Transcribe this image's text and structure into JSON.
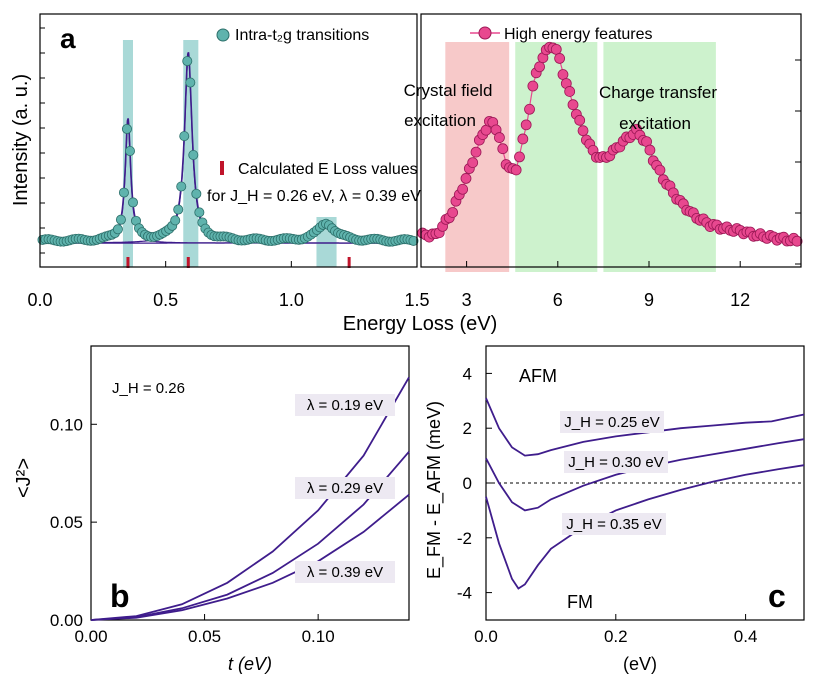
{
  "colors": {
    "purple": "#3f1d8c",
    "teal_fill": "#5fb3ad",
    "teal_band": "#a9d9d7",
    "pink_fill": "#e8488f",
    "pink_band": "#f7c9c9",
    "green_band": "#cdf2cd",
    "red_tick": "#c0142b",
    "label_bg": "#ede9f2"
  },
  "panel_a": {
    "panel_label": "a",
    "ylabel": "Intensity (a. u.)",
    "xlabel": "Energy Loss (eV)",
    "legend_left": "Intra-t₂g transitions",
    "legend_right": "High energy features",
    "calc_note_line1": "Calculated E Loss values",
    "calc_note_line2": "for J_H = 0.26 eV, λ = 0.39 eV",
    "crystal_field_line1": "Crystal field",
    "crystal_field_line2": "excitation",
    "charge_transfer_line1": "Charge transfer",
    "charge_transfer_line2": "excitation"
  },
  "panel_b": {
    "panel_label": "b",
    "ylabel": "<J²>",
    "xlabel": "t (eV)",
    "jh_label": "J_H = 0.26"
  },
  "panel_c": {
    "panel_label": "c",
    "ylabel": "E_FM - E_AFM (meV)",
    "xlabel": "(eV)",
    "afm_label": "AFM",
    "fm_label": "FM"
  },
  "chart_data": [
    {
      "id": "a-left",
      "type": "scatter",
      "xlim": [
        0,
        1.5
      ],
      "xticks": [
        "0.0",
        "0.5",
        "1.0",
        "1.5"
      ],
      "xtick_values": [
        0,
        0.5,
        1.0,
        1.5
      ],
      "ylim": [
        0,
        1
      ],
      "series": [
        {
          "name": "Intra-t2g transitions",
          "peaks": [
            {
              "x0": 0.35,
              "w": 0.013,
              "a": 0.55
            },
            {
              "x0": 0.59,
              "w": 0.018,
              "a": 0.85
            },
            {
              "x0": 1.14,
              "w": 0.04,
              "a": 0.08
            }
          ],
          "baseline": 0.05
        }
      ],
      "calculated_e_loss": [
        0.35,
        0.59,
        1.23
      ],
      "bands": [
        [
          0.33,
          0.37
        ],
        [
          0.57,
          0.63
        ],
        [
          1.1,
          1.18
        ]
      ]
    },
    {
      "id": "a-right",
      "type": "scatter",
      "xlim": [
        1.5,
        14
      ],
      "xticks": [
        "3",
        "6",
        "9",
        "12"
      ],
      "xtick_values": [
        3,
        6,
        9,
        12
      ],
      "ylim": [
        0,
        1
      ],
      "series": [
        {
          "name": "High energy features",
          "x": [
            2.0,
            2.5,
            3.0,
            3.5,
            3.8,
            4.0,
            4.3,
            4.6,
            5.0,
            5.2,
            5.5,
            5.8,
            6.0,
            6.2,
            6.5,
            6.8,
            7.0,
            7.2,
            7.5,
            7.8,
            8.0,
            8.3,
            8.6,
            8.9,
            9.2,
            9.5,
            10.0,
            10.5,
            11.0,
            11.5,
            12.0,
            12.5,
            13.0,
            13.5,
            14.0
          ],
          "y": [
            0.08,
            0.18,
            0.35,
            0.55,
            0.62,
            0.58,
            0.42,
            0.37,
            0.62,
            0.8,
            0.92,
            0.98,
            0.94,
            0.83,
            0.7,
            0.58,
            0.52,
            0.46,
            0.44,
            0.47,
            0.5,
            0.54,
            0.57,
            0.52,
            0.42,
            0.34,
            0.24,
            0.17,
            0.13,
            0.11,
            0.1,
            0.08,
            0.07,
            0.06,
            0.05
          ]
        }
      ],
      "bands": [
        {
          "label": "Crystal field excitation",
          "range": [
            2.3,
            4.4
          ],
          "color": "pink"
        },
        {
          "label": "Charge transfer excitation",
          "range": [
            4.6,
            7.3
          ],
          "color": "green"
        },
        {
          "label": "Charge transfer excitation",
          "range": [
            7.5,
            11.2
          ],
          "color": "green"
        }
      ]
    },
    {
      "id": "b",
      "type": "line",
      "xlabel": "t (eV)",
      "ylabel": "<J²>",
      "xlim": [
        0,
        0.14
      ],
      "ylim": [
        0,
        0.14
      ],
      "xticks": [
        "0.00",
        "0.05",
        "0.10"
      ],
      "xtick_values": [
        0,
        0.05,
        0.1
      ],
      "yticks": [
        "0.00",
        "0.05",
        "0.10"
      ],
      "ytick_values": [
        0,
        0.05,
        0.1
      ],
      "series": [
        {
          "name": "λ = 0.19 eV",
          "t": [
            0,
            0.02,
            0.04,
            0.06,
            0.08,
            0.1,
            0.12,
            0.14
          ],
          "values": [
            0,
            0.002,
            0.008,
            0.019,
            0.035,
            0.056,
            0.084,
            0.124
          ]
        },
        {
          "name": "λ = 0.29 eV",
          "t": [
            0,
            0.02,
            0.04,
            0.06,
            0.08,
            0.1,
            0.12,
            0.14
          ],
          "values": [
            0,
            0.0015,
            0.006,
            0.013,
            0.024,
            0.039,
            0.059,
            0.086
          ]
        },
        {
          "name": "λ = 0.39 eV",
          "t": [
            0,
            0.02,
            0.04,
            0.06,
            0.08,
            0.1,
            0.12,
            0.14
          ],
          "values": [
            0,
            0.0012,
            0.005,
            0.011,
            0.019,
            0.03,
            0.045,
            0.064
          ]
        }
      ]
    },
    {
      "id": "c",
      "type": "line",
      "xlabel": "(eV)",
      "ylabel": "E_FM - E_AFM (meV)",
      "xlim": [
        0,
        0.49
      ],
      "ylim": [
        -5,
        5
      ],
      "xticks": [
        "0.0",
        "0.2",
        "0.4"
      ],
      "xtick_values": [
        0,
        0.2,
        0.4
      ],
      "yticks": [
        "-4",
        "-2",
        "0",
        "2",
        "4"
      ],
      "ytick_values": [
        -4,
        -2,
        0,
        2,
        4
      ],
      "zero_line": true,
      "series": [
        {
          "name": "J_H = 0.25 eV",
          "x": [
            0,
            0.02,
            0.04,
            0.06,
            0.08,
            0.1,
            0.15,
            0.2,
            0.25,
            0.3,
            0.35,
            0.4,
            0.44,
            0.47,
            0.49
          ],
          "values": [
            3.1,
            2.0,
            1.3,
            1.0,
            1.05,
            1.2,
            1.5,
            1.7,
            1.85,
            2.0,
            2.1,
            2.2,
            2.25,
            2.4,
            2.5
          ]
        },
        {
          "name": "J_H = 0.30 eV",
          "x": [
            0,
            0.02,
            0.04,
            0.06,
            0.08,
            0.1,
            0.15,
            0.2,
            0.25,
            0.3,
            0.35,
            0.4,
            0.45,
            0.49
          ],
          "values": [
            0.9,
            0.0,
            -0.7,
            -1.0,
            -0.9,
            -0.6,
            -0.1,
            0.3,
            0.6,
            0.85,
            1.05,
            1.25,
            1.45,
            1.6
          ]
        },
        {
          "name": "J_H = 0.35 eV",
          "x": [
            0,
            0.02,
            0.04,
            0.05,
            0.06,
            0.08,
            0.1,
            0.15,
            0.2,
            0.25,
            0.3,
            0.35,
            0.4,
            0.45,
            0.49
          ],
          "values": [
            -0.5,
            -2.2,
            -3.5,
            -3.85,
            -3.7,
            -3.0,
            -2.4,
            -1.6,
            -1.0,
            -0.6,
            -0.25,
            0.05,
            0.3,
            0.5,
            0.65
          ]
        }
      ]
    }
  ]
}
